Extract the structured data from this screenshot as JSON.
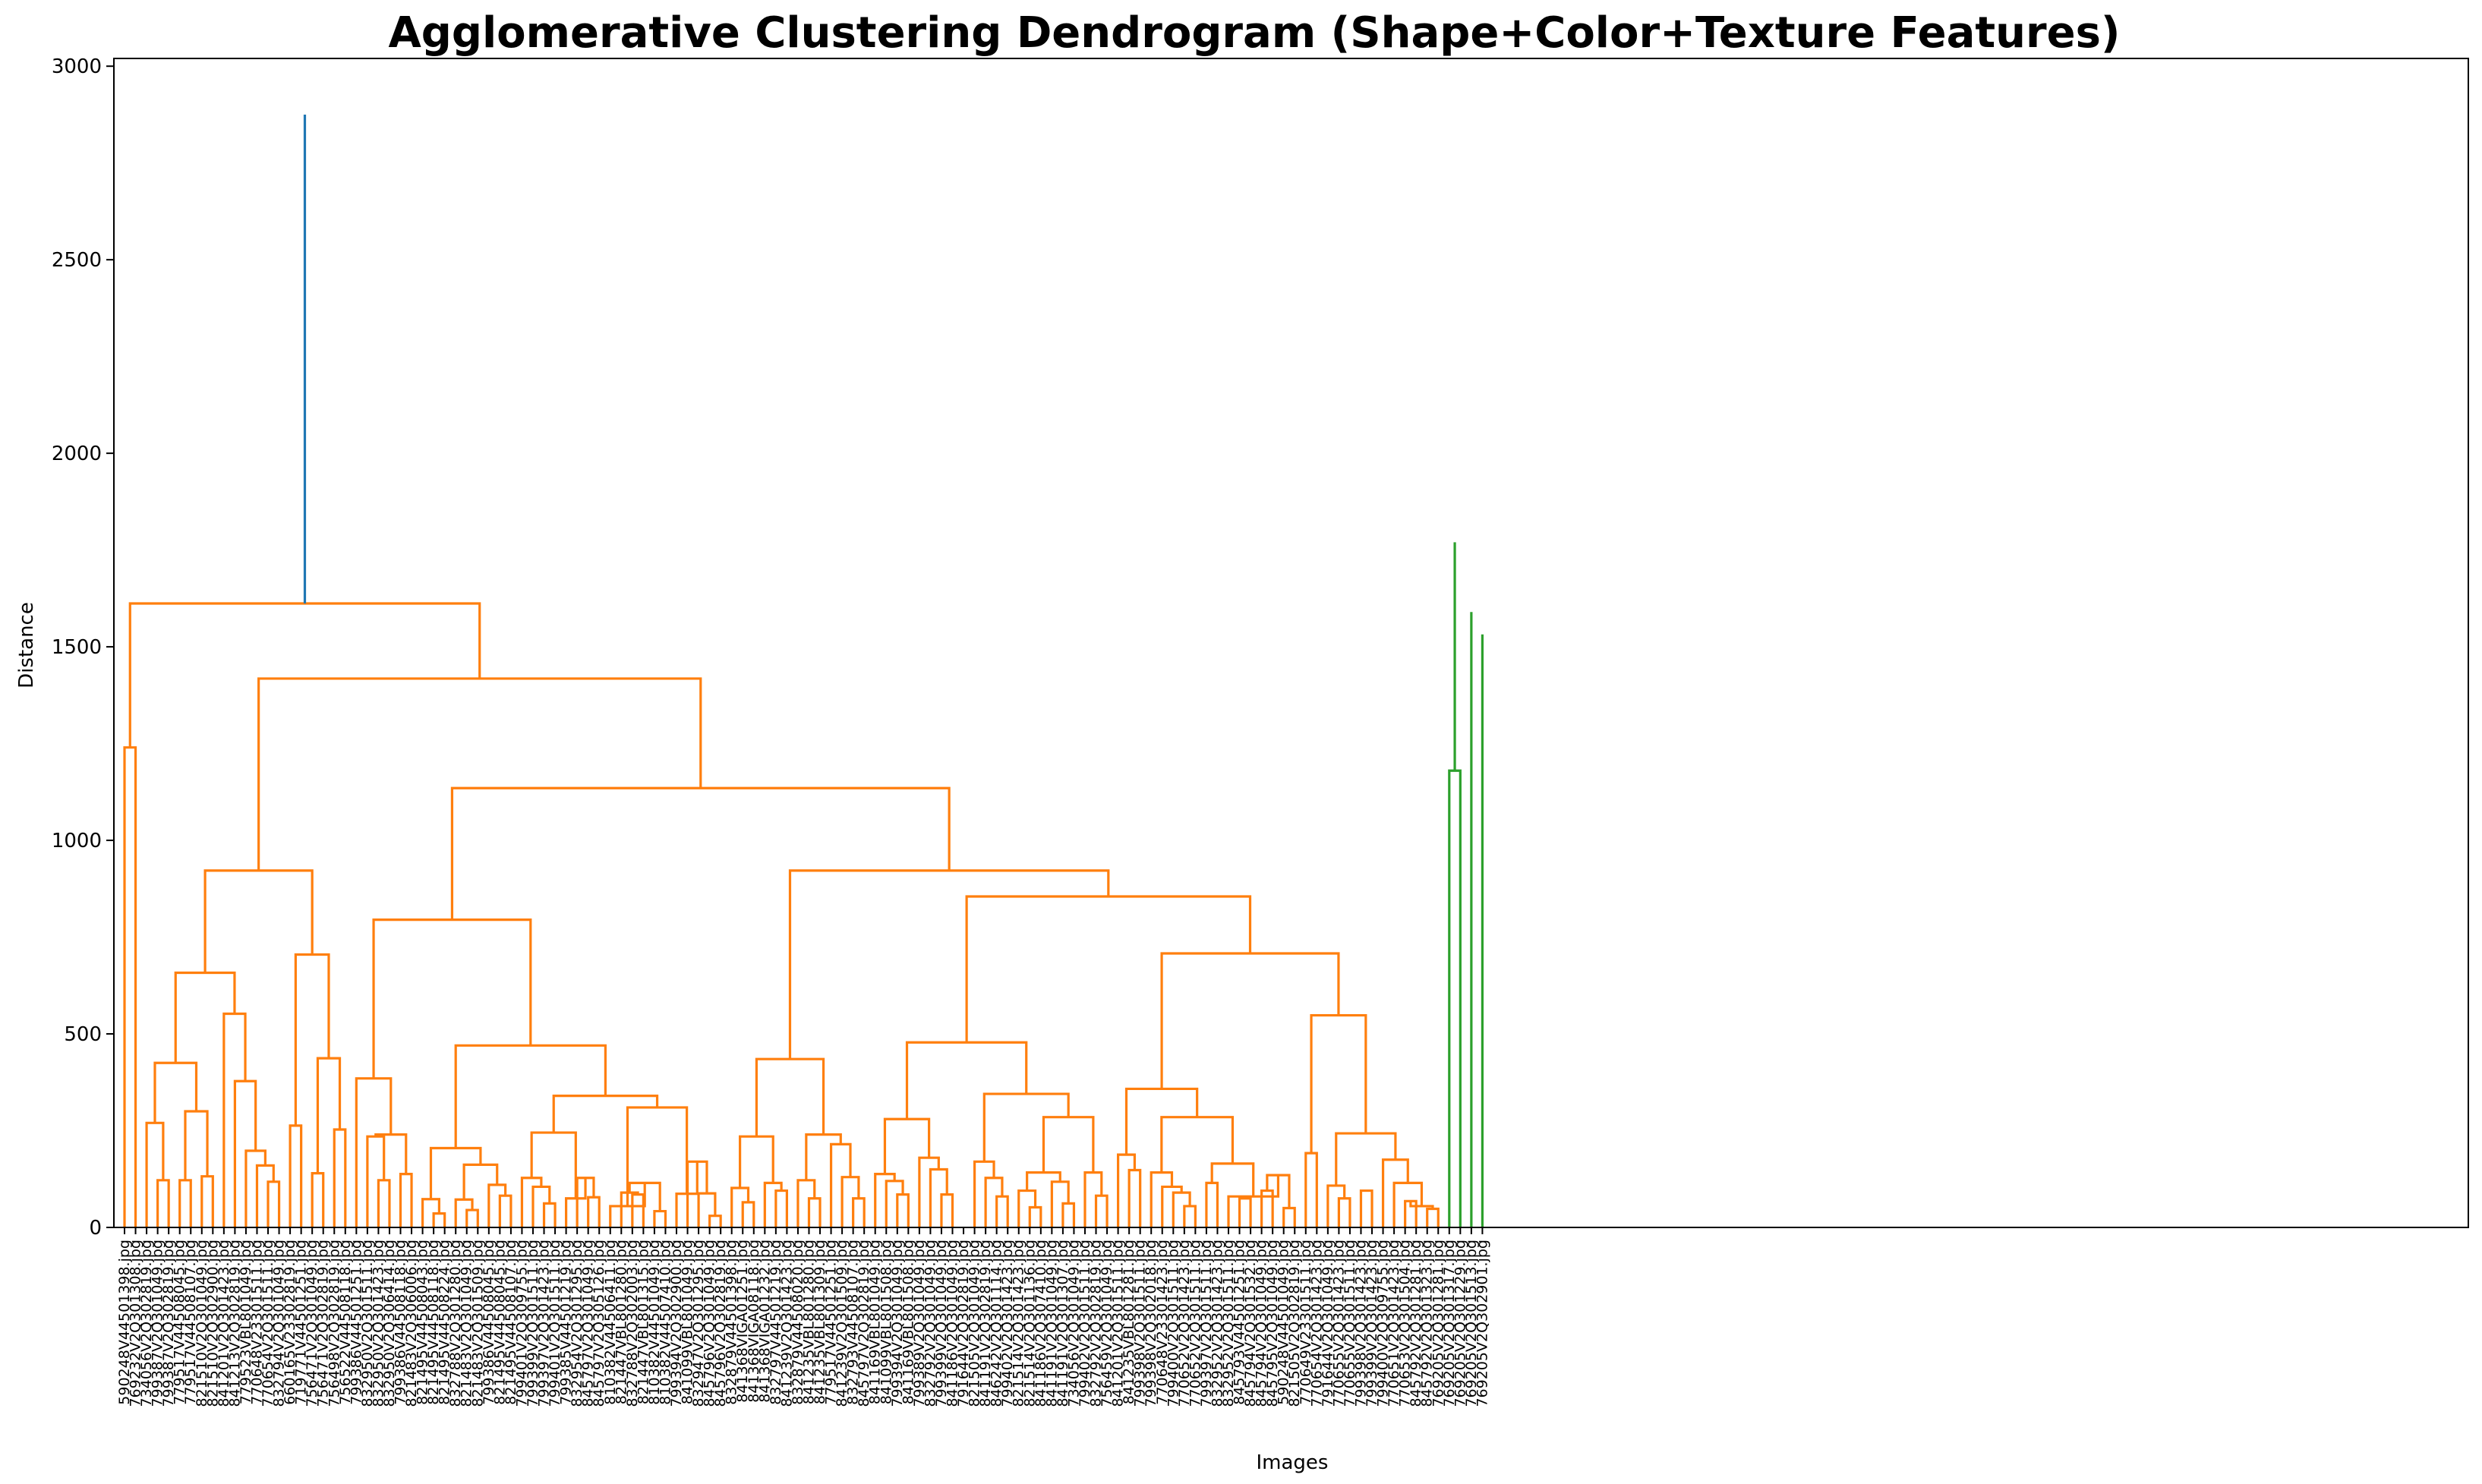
{
  "chart_data": {
    "type": "dendrogram",
    "title": "Agglomerative Clustering Dendrogram (Shape+Color+Texture Features)",
    "xlabel": "Images",
    "ylabel": "Distance",
    "ylim": [
      0,
      3020
    ],
    "yticks": [
      0,
      500,
      1000,
      1500,
      2000,
      2500,
      3000
    ],
    "grid": false,
    "colors": {
      "root": "#1f77b4",
      "cluster1": "#ff7f0e",
      "cluster2": "#2ca02c"
    },
    "leaves": [
      "590248V44501398.jpg",
      "769232V2Q301308.jpg",
      "734056V2Q302819.jpg",
      "799387V2Q301049.jpg",
      "799387V2Q302819.jpg",
      "779517V44508045.jpg",
      "779517V44508107.jpg",
      "821510V2Q301049.jpg",
      "821510V2Q302900.jpg",
      "841201V2Q301423.jpg",
      "841213V2Q302819.jpg",
      "779523VBL801049.jpg",
      "770648V23301511.jpg",
      "770654V2Q301511.jpg",
      "832794V2Q301049.jpg",
      "660165V23302819.jpg",
      "719771V44501251.jpg",
      "756471V2Q301049.jpg",
      "756471V2Q302819.jpg",
      "756498V2Q302819.jpg",
      "756522V44508118.jpg",
      "799386V44501251.jpg",
      "832950V2Q301511.jpg",
      "832950V2Q301423.jpg",
      "832950V2Q306414.jpg",
      "799386V44508118.jpg",
      "821483V2Q306006.jpg",
      "821495V44508043.jpg",
      "821495V44508118.jpg",
      "821495V44508224.jpg",
      "832788V2Q301280.jpg",
      "821483V2Q301049.jpg",
      "821483V2Q301509.jpg",
      "799386V44508045.jpg",
      "821495V44508045.jpg",
      "821495V44508107.jpg",
      "799401V2Q309755.jpg",
      "799399V2Q301511.jpg",
      "799397V2Q301423.jpg",
      "799401V2Q301511.jpg",
      "799385V44501219.jpg",
      "832954V2Q301295.jpg",
      "845797V2Q301049.jpg",
      "845797V2Q305126.jpg",
      "810382V44506411.jpg",
      "821447VBL801280.jpg",
      "832788V2Q302003.jpg",
      "821447VBL801315.jpg",
      "810382V44501049.jpg",
      "810382V44507410.jpg",
      "799394V2Q302900.jpg",
      "841099VBL801049.jpg",
      "832947V2Q301295.jpg",
      "845796V2Q301049.jpg",
      "845796V2Q302819.jpg",
      "832879V44501398.jpg",
      "841368VIGA01251.jpg",
      "841368VIGA08118.jpg",
      "841368VIGA01232.jpg",
      "832797V44501219.jpg",
      "841239V2Q301423.jpg",
      "832879V44508020.jpg",
      "841235VBL801280.jpg",
      "841235VBL801309.jpg",
      "779517V44501251.jpg",
      "841239V2Q301509.jpg",
      "832793V44508107.jpg",
      "845797V2Q302819.jpg",
      "841169VBL801049.jpg",
      "841099VBL801508.jpg",
      "799394V2Q301049.jpg",
      "841169VBL801508.jpg",
      "799389V2Q301049.jpg",
      "832792V2Q301049.jpg",
      "799399V2Q301049.jpg",
      "841186V2Q301049.jpg",
      "791644V2Q302819.jpg",
      "821505V2Q301049.jpg",
      "841191V2Q302819.jpg",
      "846242V2Q301114.jpg",
      "799402V2Q301423.jpg",
      "821514V2Q301423.jpg",
      "821514V2Q301136.jpg",
      "841186V2Q307410.jpg",
      "841191V2Q301049.jpg",
      "841191V2Q301307.jpg",
      "734056V2Q301049.jpg",
      "799402V2Q301511.jpg",
      "832792V2Q302819.jpg",
      "756459V2Q301049.jpg",
      "841201V2Q301511.jpg",
      "841235VBL801281.jpg",
      "799398V2Q301511.jpg",
      "799398V2Q302018.jpg",
      "770648V23301423.jpg",
      "799400V2Q301511.jpg",
      "770652V2Q301423.jpg",
      "770652V2Q301511.jpg",
      "799397V2Q301511.jpg",
      "832952V2Q301423.jpg",
      "832952V2Q301511.jpg",
      "845793V44501251.jpg",
      "845794V2Q301532.jpg",
      "845794V2Q301049.jpg",
      "845795V2Q301049.jpg",
      "590248V44501049.jpg",
      "821505V2Q302819.jpg",
      "770649V23301511.jpg",
      "770654V2Q301423.jpg",
      "791644V2Q301049.jpg",
      "770655V2Q301423.jpg",
      "770655V2Q301511.jpg",
      "799398V2Q301423.jpg",
      "799399V2Q301423.jpg",
      "799400V2Q309755.jpg",
      "770651V2Q301423.jpg",
      "770653V2Q301504.jpg",
      "845792V2Q301281.jpg",
      "845792V2Q301323.jpg",
      "769205V2Q301281.jpg",
      "769205V2Q301317.jpg",
      "769205V2Q301229.jpg",
      "769205V2Q301513.jpg",
      "769205V2Q302901.jpg"
    ],
    "merges": [
      [
        0,
        1,
        1240,
        "#ff7f0e"
      ],
      [
        3,
        4,
        122,
        "#ff7f0e"
      ],
      [
        2,
        -2,
        270,
        "#ff7f0e"
      ],
      [
        5,
        6,
        122,
        "#ff7f0e"
      ],
      [
        7,
        8,
        132,
        "#ff7f0e"
      ],
      [
        -4,
        -5,
        300,
        "#ff7f0e"
      ],
      [
        -3,
        -6,
        425,
        "#ff7f0e"
      ],
      [
        13,
        14,
        118,
        "#ff7f0e"
      ],
      [
        12,
        -8,
        160,
        "#ff7f0e"
      ],
      [
        11,
        -9,
        198,
        "#ff7f0e"
      ],
      [
        10,
        -10,
        378,
        "#ff7f0e"
      ],
      [
        9,
        -11,
        552,
        "#ff7f0e"
      ],
      [
        -7,
        -12,
        658,
        "#ff7f0e"
      ],
      [
        15,
        16,
        263,
        "#ff7f0e"
      ],
      [
        17,
        18,
        140,
        "#ff7f0e"
      ],
      [
        19,
        20,
        253,
        "#ff7f0e"
      ],
      [
        -15,
        -16,
        437,
        "#ff7f0e"
      ],
      [
        -14,
        -17,
        705,
        "#ff7f0e"
      ],
      [
        -13,
        -18,
        922,
        "#ff7f0e"
      ],
      [
        23,
        24,
        122,
        "#ff7f0e"
      ],
      [
        25,
        26,
        138,
        "#ff7f0e"
      ],
      [
        22,
        -20,
        235,
        "#ff7f0e"
      ],
      [
        -21,
        -22,
        240,
        "#ff7f0e"
      ],
      [
        21,
        -23,
        385,
        "#ff7f0e"
      ],
      [
        28,
        29,
        36,
        "#ff7f0e"
      ],
      [
        27,
        -25,
        73,
        "#ff7f0e"
      ],
      [
        31,
        32,
        45,
        "#ff7f0e"
      ],
      [
        30,
        -27,
        72,
        "#ff7f0e"
      ],
      [
        34,
        35,
        82,
        "#ff7f0e"
      ],
      [
        33,
        -29,
        110,
        "#ff7f0e"
      ],
      [
        -28,
        -30,
        162,
        "#ff7f0e"
      ],
      [
        -26,
        -31,
        205,
        "#ff7f0e"
      ],
      [
        38,
        39,
        62,
        "#ff7f0e"
      ],
      [
        37,
        -33,
        105,
        "#ff7f0e"
      ],
      [
        36,
        -34,
        128,
        "#ff7f0e"
      ],
      [
        42,
        43,
        78,
        "#ff7f0e"
      ],
      [
        41,
        -36,
        128,
        "#ff7f0e"
      ],
      [
        40,
        -37,
        75,
        "#ff7f0e"
      ],
      [
        -35,
        -38,
        245,
        "#ff7f0e"
      ],
      [
        46,
        47,
        85,
        "#ff7f0e"
      ],
      [
        45,
        -40,
        90,
        "#ff7f0e"
      ],
      [
        48,
        49,
        42,
        "#ff7f0e"
      ],
      [
        -41,
        -42,
        115,
        "#ff7f0e"
      ],
      [
        44,
        -43,
        55,
        "#ff7f0e"
      ],
      [
        53,
        54,
        30,
        "#ff7f0e"
      ],
      [
        52,
        -45,
        88,
        "#ff7f0e"
      ],
      [
        51,
        -46,
        170,
        "#ff7f0e"
      ],
      [
        50,
        -47,
        87,
        "#ff7f0e"
      ],
      [
        -44,
        -48,
        310,
        "#ff7f0e"
      ],
      [
        -39,
        -49,
        340,
        "#ff7f0e"
      ],
      [
        -32,
        -50,
        470,
        "#ff7f0e"
      ],
      [
        -24,
        -51,
        795,
        "#ff7f0e"
      ],
      [
        56,
        57,
        65,
        "#ff7f0e"
      ],
      [
        55,
        -53,
        102,
        "#ff7f0e"
      ],
      [
        59,
        60,
        95,
        "#ff7f0e"
      ],
      [
        58,
        -55,
        115,
        "#ff7f0e"
      ],
      [
        -54,
        -56,
        235,
        "#ff7f0e"
      ],
      [
        62,
        63,
        75,
        "#ff7f0e"
      ],
      [
        61,
        -58,
        122,
        "#ff7f0e"
      ],
      [
        66,
        67,
        75,
        "#ff7f0e"
      ],
      [
        65,
        -60,
        130,
        "#ff7f0e"
      ],
      [
        64,
        -61,
        215,
        "#ff7f0e"
      ],
      [
        -59,
        -62,
        240,
        "#ff7f0e"
      ],
      [
        -57,
        -63,
        435,
        "#ff7f0e"
      ],
      [
        70,
        71,
        85,
        "#ff7f0e"
      ],
      [
        69,
        -65,
        120,
        "#ff7f0e"
      ],
      [
        68,
        -66,
        138,
        "#ff7f0e"
      ],
      [
        74,
        75,
        85,
        "#ff7f0e"
      ],
      [
        73,
        -68,
        150,
        "#ff7f0e"
      ],
      [
        72,
        -69,
        180,
        "#ff7f0e"
      ],
      [
        -67,
        -70,
        280,
        "#ff7f0e"
      ],
      [
        79,
        80,
        80,
        "#ff7f0e"
      ],
      [
        78,
        -72,
        128,
        "#ff7f0e"
      ],
      [
        77,
        -73,
        170,
        "#ff7f0e"
      ],
      [
        82,
        83,
        52,
        "#ff7f0e"
      ],
      [
        81,
        -75,
        95,
        "#ff7f0e"
      ],
      [
        85,
        86,
        62,
        "#ff7f0e"
      ],
      [
        84,
        -77,
        118,
        "#ff7f0e"
      ],
      [
        -76,
        -78,
        142,
        "#ff7f0e"
      ],
      [
        88,
        89,
        82,
        "#ff7f0e"
      ],
      [
        87,
        -80,
        142,
        "#ff7f0e"
      ],
      [
        -79,
        -81,
        285,
        "#ff7f0e"
      ],
      [
        -74,
        -82,
        345,
        "#ff7f0e"
      ],
      [
        -71,
        -83,
        478,
        "#ff7f0e"
      ],
      [
        91,
        92,
        148,
        "#ff7f0e"
      ],
      [
        90,
        -85,
        188,
        "#ff7f0e"
      ],
      [
        96,
        97,
        55,
        "#ff7f0e"
      ],
      [
        95,
        -87,
        90,
        "#ff7f0e"
      ],
      [
        94,
        -88,
        105,
        "#ff7f0e"
      ],
      [
        93,
        -89,
        142,
        "#ff7f0e"
      ],
      [
        98,
        99,
        115,
        "#ff7f0e"
      ],
      [
        101,
        102,
        75,
        "#ff7f0e"
      ],
      [
        103,
        104,
        95,
        "#ff7f0e"
      ],
      [
        105,
        106,
        50,
        "#ff7f0e"
      ],
      [
        -93,
        -94,
        135,
        "#ff7f0e"
      ],
      [
        100,
        -95,
        80,
        "#ff7f0e"
      ],
      [
        -91,
        -96,
        165,
        "#ff7f0e"
      ],
      [
        -90,
        -97,
        285,
        "#ff7f0e"
      ],
      [
        -86,
        -98,
        358,
        "#ff7f0e"
      ],
      [
        107,
        108,
        192,
        "#ff7f0e"
      ],
      [
        110,
        111,
        75,
        "#ff7f0e"
      ],
      [
        109,
        -101,
        108,
        "#ff7f0e"
      ],
      [
        112,
        113,
        95,
        "#ff7f0e"
      ],
      [
        116,
        117,
        68,
        "#ff7f0e"
      ],
      [
        118,
        119,
        48,
        "#ff7f0e"
      ],
      [
        -104,
        -105,
        55,
        "#ff7f0e"
      ],
      [
        115,
        -106,
        115,
        "#ff7f0e"
      ],
      [
        114,
        -107,
        175,
        "#ff7f0e"
      ],
      [
        -102,
        -108,
        243,
        "#ff7f0e"
      ],
      [
        -100,
        -109,
        548,
        "#ff7f0e"
      ],
      [
        -99,
        -110,
        708,
        "#ff7f0e"
      ],
      [
        -84,
        -111,
        855,
        "#ff7f0e"
      ],
      [
        -64,
        -112,
        922,
        "#ff7f0e"
      ],
      [
        -52,
        -113,
        1135,
        "#ff7f0e"
      ],
      [
        -19,
        -114,
        1418,
        "#ff7f0e"
      ],
      [
        -1,
        -115,
        1612,
        "#ff7f0e"
      ],
      [
        120,
        121,
        1180,
        "#2ca02c"
      ],
      [
        125,
        126,
        1345,
        "#2ca02c"
      ],
      [
        124,
        -118,
        1385,
        "#2ca02c"
      ],
      [
        123,
        -119,
        1532,
        "#2ca02c"
      ],
      [
        122,
        -120,
        1590,
        "#2ca02c"
      ],
      [
        -117,
        -121,
        1770,
        "#2ca02c"
      ],
      [
        -116,
        -122,
        2875,
        "#1f77b4"
      ]
    ]
  }
}
